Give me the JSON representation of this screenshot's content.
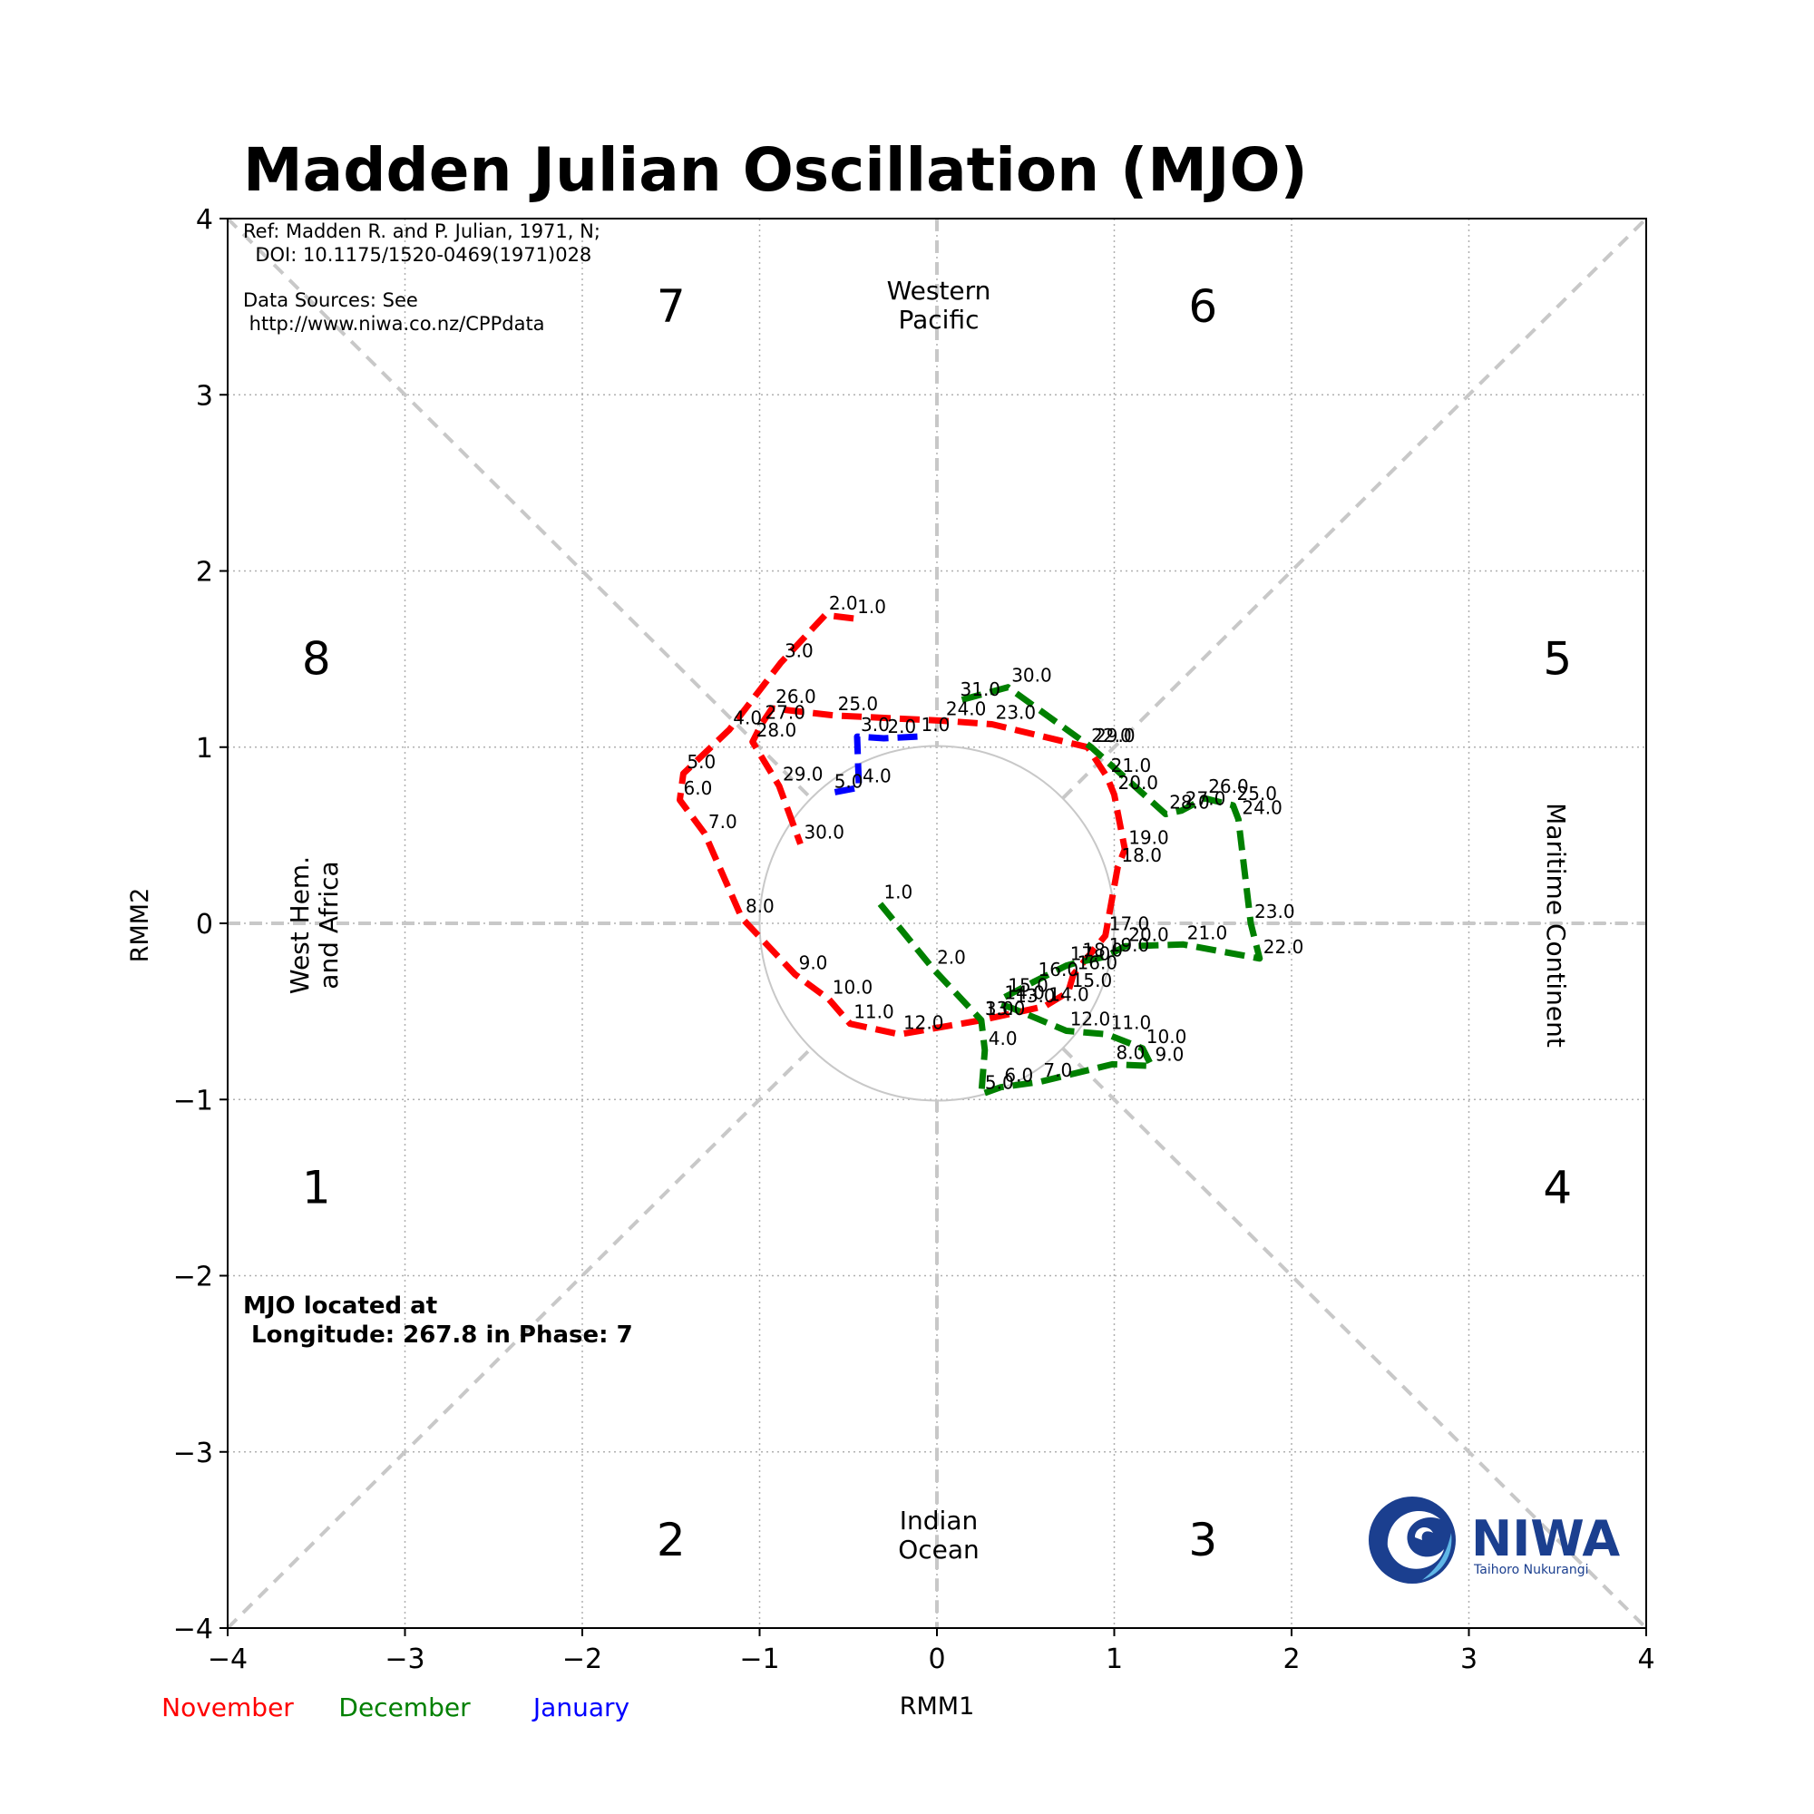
{
  "chart_data": {
    "type": "line",
    "title": "Madden Julian Oscillation (MJO)",
    "xlabel": "RMM1",
    "ylabel": "RMM2",
    "xlim": [
      -4,
      4
    ],
    "ylim": [
      -4,
      4
    ],
    "xticks": [
      "−4",
      "−3",
      "−2",
      "−1",
      "0",
      "1",
      "2",
      "3",
      "4"
    ],
    "yticks": [
      "−4",
      "−3",
      "−2",
      "−1",
      "0",
      "1",
      "2",
      "3",
      "4"
    ],
    "grid": true,
    "unit_circle_radius": 1,
    "phases": [
      {
        "label": "7",
        "x": -1.5,
        "y": 3.5
      },
      {
        "label": "6",
        "x": 1.5,
        "y": 3.5
      },
      {
        "label": "8",
        "x": -3.5,
        "y": 1.5
      },
      {
        "label": "5",
        "x": 3.5,
        "y": 1.5
      },
      {
        "label": "1",
        "x": -3.5,
        "y": -1.5
      },
      {
        "label": "4",
        "x": 3.5,
        "y": -1.5
      },
      {
        "label": "2",
        "x": -1.5,
        "y": -3.5
      },
      {
        "label": "3",
        "x": 1.5,
        "y": -3.5
      }
    ],
    "regions": {
      "top": [
        "Western",
        "Pacific"
      ],
      "bottom": [
        "Indian",
        "Ocean"
      ],
      "left": [
        "West Hem.",
        "and Africa"
      ],
      "right": "Maritime Continent"
    },
    "reference_lines": [
      "Ref: Madden R. and P. Julian, 1971, N;",
      "  DOI: 10.1175/1520-0469(1971)028"
    ],
    "source_lines": [
      "Data Sources: See",
      " http://www.niwa.co.nz/CPPdata"
    ],
    "status_lines": [
      "MJO located at",
      " Longitude: 267.8 in Phase: 7"
    ],
    "series": [
      {
        "name": "November",
        "color": "#ff0000",
        "points": [
          {
            "label": "1.0",
            "x": -0.47,
            "y": 1.73
          },
          {
            "label": "2.0",
            "x": -0.63,
            "y": 1.75
          },
          {
            "label": "3.0",
            "x": -0.88,
            "y": 1.48
          },
          {
            "label": "4.0",
            "x": -1.17,
            "y": 1.1
          },
          {
            "label": "5.0",
            "x": -1.43,
            "y": 0.85
          },
          {
            "label": "6.0",
            "x": -1.45,
            "y": 0.7
          },
          {
            "label": "7.0",
            "x": -1.31,
            "y": 0.51
          },
          {
            "label": "8.0",
            "x": -1.1,
            "y": 0.03
          },
          {
            "label": "9.0",
            "x": -0.8,
            "y": -0.29
          },
          {
            "label": "10.0",
            "x": -0.61,
            "y": -0.43
          },
          {
            "label": "11.0",
            "x": -0.49,
            "y": -0.57
          },
          {
            "label": "12.0",
            "x": -0.21,
            "y": -0.63
          },
          {
            "label": "13.0",
            "x": 0.25,
            "y": -0.55
          },
          {
            "label": "14.0",
            "x": 0.61,
            "y": -0.47
          },
          {
            "label": "15.0",
            "x": 0.74,
            "y": -0.39
          },
          {
            "label": "16.0",
            "x": 0.77,
            "y": -0.29
          },
          {
            "label": "17.0",
            "x": 0.95,
            "y": -0.07
          },
          {
            "label": "18.0",
            "x": 1.02,
            "y": 0.32
          },
          {
            "label": "19.0",
            "x": 1.06,
            "y": 0.42
          },
          {
            "label": "20.0",
            "x": 1.0,
            "y": 0.73
          },
          {
            "label": "21.0",
            "x": 0.96,
            "y": 0.83
          },
          {
            "label": "22.0",
            "x": 0.85,
            "y": 1.0
          },
          {
            "label": "23.0",
            "x": 0.31,
            "y": 1.13
          },
          {
            "label": "24.0",
            "x": 0.03,
            "y": 1.15
          },
          {
            "label": "25.0",
            "x": -0.58,
            "y": 1.18
          },
          {
            "label": "26.0",
            "x": -0.93,
            "y": 1.22
          },
          {
            "label": "27.0",
            "x": -0.99,
            "y": 1.13
          },
          {
            "label": "28.0",
            "x": -1.04,
            "y": 1.03
          },
          {
            "label": "29.0",
            "x": -0.89,
            "y": 0.78
          },
          {
            "label": "30.0",
            "x": -0.77,
            "y": 0.45
          }
        ]
      },
      {
        "name": "December",
        "color": "#008000",
        "points": [
          {
            "label": "1.0",
            "x": -0.32,
            "y": 0.11
          },
          {
            "label": "2.0",
            "x": -0.02,
            "y": -0.26
          },
          {
            "label": "3.0",
            "x": 0.25,
            "y": -0.55
          },
          {
            "label": "4.0",
            "x": 0.27,
            "y": -0.72
          },
          {
            "label": "5.0",
            "x": 0.25,
            "y": -0.97
          },
          {
            "label": "6.0",
            "x": 0.36,
            "y": -0.93
          },
          {
            "label": "7.0",
            "x": 0.58,
            "y": -0.9
          },
          {
            "label": "8.0",
            "x": 0.99,
            "y": -0.8
          },
          {
            "label": "9.0",
            "x": 1.21,
            "y": -0.81
          },
          {
            "label": "10.0",
            "x": 1.16,
            "y": -0.71
          },
          {
            "label": "11.0",
            "x": 0.96,
            "y": -0.63
          },
          {
            "label": "12.0",
            "x": 0.73,
            "y": -0.61
          },
          {
            "label": "13.0",
            "x": 0.42,
            "y": -0.48
          },
          {
            "label": "14.0",
            "x": 0.36,
            "y": -0.46
          },
          {
            "label": "15.0",
            "x": 0.38,
            "y": -0.42
          },
          {
            "label": "16.0",
            "x": 0.55,
            "y": -0.33
          },
          {
            "label": "17.0",
            "x": 0.73,
            "y": -0.24
          },
          {
            "label": "18.0",
            "x": 0.8,
            "y": -0.22
          },
          {
            "label": "19.0",
            "x": 0.95,
            "y": -0.19
          },
          {
            "label": "20.0",
            "x": 1.06,
            "y": -0.13
          },
          {
            "label": "21.0",
            "x": 1.39,
            "y": -0.12
          },
          {
            "label": "22.0",
            "x": 1.82,
            "y": -0.2
          },
          {
            "label": "23.0",
            "x": 1.77,
            "y": 0.0
          },
          {
            "label": "24.0",
            "x": 1.7,
            "y": 0.59
          },
          {
            "label": "25.0",
            "x": 1.67,
            "y": 0.67
          },
          {
            "label": "26.0",
            "x": 1.51,
            "y": 0.71
          },
          {
            "label": "27.0",
            "x": 1.38,
            "y": 0.64
          },
          {
            "label": "28.0",
            "x": 1.29,
            "y": 0.62
          },
          {
            "label": "29.0",
            "x": 0.87,
            "y": 1.0
          },
          {
            "label": "30.0",
            "x": 0.4,
            "y": 1.34
          },
          {
            "label": "31.0",
            "x": 0.11,
            "y": 1.26
          }
        ]
      },
      {
        "name": "January",
        "color": "#0000ff",
        "points": [
          {
            "label": "1.0",
            "x": -0.11,
            "y": 1.06
          },
          {
            "label": "2.0",
            "x": -0.3,
            "y": 1.05
          },
          {
            "label": "3.0",
            "x": -0.45,
            "y": 1.06
          },
          {
            "label": "4.0",
            "x": -0.44,
            "y": 0.77
          },
          {
            "label": "5.0",
            "x": -0.6,
            "y": 0.74
          }
        ]
      }
    ],
    "legend_placement": "bottom-left"
  },
  "logo": {
    "name": "NIWA",
    "subtitle": "Taihoro Nukurangi"
  }
}
